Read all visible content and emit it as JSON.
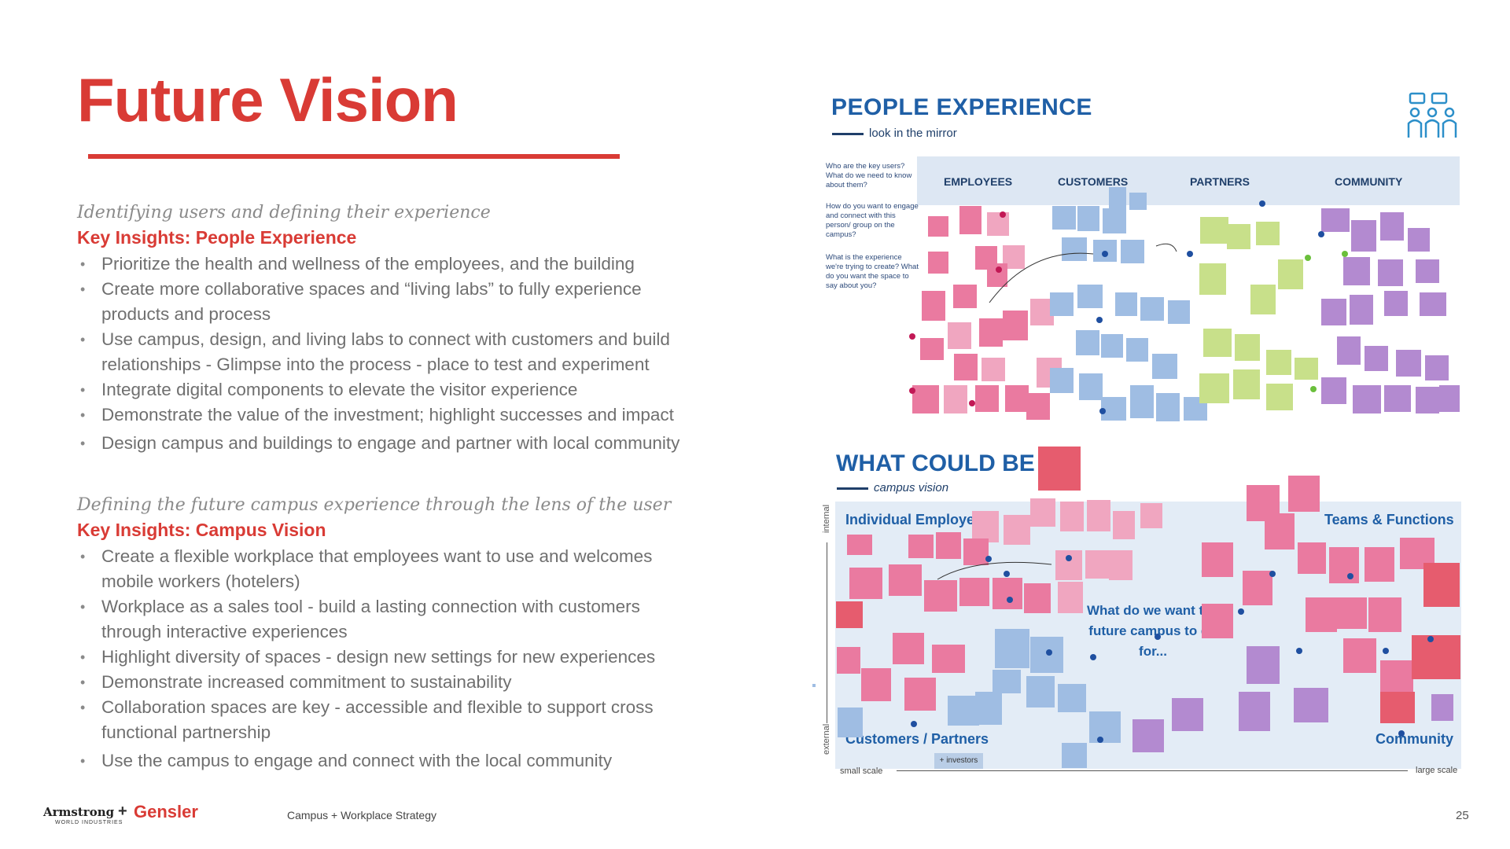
{
  "title": "Future Vision",
  "section1": {
    "subtitle": "Identifying users and defining their experience",
    "heading": "Key Insights: People Experience",
    "bullets": [
      "Prioritize the health and wellness of the employees, and the building",
      "Create more collaborative spaces and “living labs” to fully experience products and process",
      "Use campus, design, and living labs  to connect with customers and build relationships - Glimpse into the process - place to test and experiment",
      "Integrate digital components to elevate the visitor experience",
      "Demonstrate the value of the investment; highlight successes and impact",
      "Design campus and buildings  to engage and partner with local community"
    ]
  },
  "section2": {
    "subtitle": "Defining the future campus experience through the lens of the user",
    "heading": "Key Insights: Campus Vision",
    "bullets": [
      "Create a flexible workplace that employees want to use and welcomes mobile workers (hotelers)",
      "Workplace as a sales tool - build a lasting connection with customers through interactive experiences",
      "Highlight diversity of spaces - design new settings for new experiences",
      "Demonstrate increased commitment to sustainability",
      "Collaboration spaces are key - accessible and flexible to support cross functional partnership",
      "Use the campus to engage and connect with the local community"
    ]
  },
  "people_experience": {
    "title": "PEOPLE EXPERIENCE",
    "subtitle": "look in the mirror",
    "icon": "people-chat-icon",
    "columns": [
      "EMPLOYEES",
      "CUSTOMERS",
      "PARTNERS",
      "COMMUNITY"
    ],
    "questions": [
      "Who are the key users? What do we need to know about them?",
      "How do you want to engage and connect with this person/ group on the campus?",
      "What is the experience we're trying to create? What do you want the space to say about you?"
    ]
  },
  "what_could_be": {
    "title": "WHAT COULD BE",
    "subtitle": "campus vision",
    "quadrants": [
      "Individual Employee",
      "Teams & Functions",
      "Customers / Partners",
      "Community"
    ],
    "center_question": "What do we want the future campus to do for...",
    "axis_internal": "internal",
    "axis_external": "external",
    "scale_small": "small scale",
    "scale_large": "large scale",
    "investors": "+ investors"
  },
  "footer": {
    "brand1": "Armstrong",
    "brand1_sub": "WORLD INDUSTRIES",
    "plus": "+",
    "brand2": "Gensler",
    "text": "Campus + Workplace Strategy",
    "page": "25"
  },
  "colors": {
    "accent_red": "#d93b35",
    "heading_blue": "#1f5fa6",
    "board_blue": "#dde7f3",
    "note_pink": "#ea7aa0",
    "note_blue": "#9fbde3",
    "note_green": "#c8e08a",
    "note_purple": "#b38ad0"
  }
}
